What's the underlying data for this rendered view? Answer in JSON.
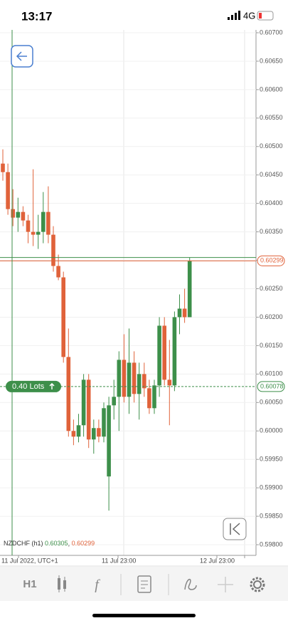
{
  "status_bar": {
    "time": "13:17",
    "network": "4G"
  },
  "chart_data": {
    "type": "candlestick",
    "symbol": "NZDCHF (h1)",
    "ask": 0.60305,
    "bid": 0.60299,
    "order": {
      "label": "0.40 Lots",
      "price": 0.60078
    },
    "up_color": "#3d8f4a",
    "down_color": "#e0623a",
    "ylim": [
      0.59775,
      0.60705
    ],
    "yticks": [
      {
        "value": 0.607,
        "label": "0.60700"
      },
      {
        "value": 0.6065,
        "label": "0.60650"
      },
      {
        "value": 0.606,
        "label": "0.60600"
      },
      {
        "value": 0.6055,
        "label": "0.60550"
      },
      {
        "value": 0.605,
        "label": "0.60500"
      },
      {
        "value": 0.6045,
        "label": "0.60450"
      },
      {
        "value": 0.604,
        "label": "0.60400"
      },
      {
        "value": 0.6035,
        "label": "0.60350"
      },
      {
        "value": 0.603,
        "label": "0.60300"
      },
      {
        "value": 0.6025,
        "label": "0.60250"
      },
      {
        "value": 0.602,
        "label": "0.60200"
      },
      {
        "value": 0.6015,
        "label": "0.60150"
      },
      {
        "value": 0.601,
        "label": "0.60100"
      },
      {
        "value": 0.6005,
        "label": "0.60050"
      },
      {
        "value": 0.6,
        "label": "0.60000"
      },
      {
        "value": 0.5995,
        "label": "0.59950"
      },
      {
        "value": 0.599,
        "label": "0.59900"
      },
      {
        "value": 0.5985,
        "label": "0.59850"
      },
      {
        "value": 0.598,
        "label": "0.59800"
      }
    ],
    "x_labels": [
      "11 Jul 2022, UTC+1",
      "11 Jul 23:00",
      "12 Jul 23:00"
    ],
    "candles": [
      [
        0.6047,
        0.60495,
        0.6044,
        0.60455
      ],
      [
        0.60455,
        0.6047,
        0.6038,
        0.6039
      ],
      [
        0.6039,
        0.60425,
        0.6036,
        0.60375
      ],
      [
        0.60375,
        0.6041,
        0.6035,
        0.60385
      ],
      [
        0.60385,
        0.60395,
        0.6036,
        0.6037
      ],
      [
        0.6037,
        0.6038,
        0.6033,
        0.6035
      ],
      [
        0.6035,
        0.6046,
        0.60325,
        0.60345
      ],
      [
        0.60345,
        0.6038,
        0.6032,
        0.6035
      ],
      [
        0.6035,
        0.6042,
        0.6033,
        0.60385
      ],
      [
        0.60385,
        0.6043,
        0.6033,
        0.60345
      ],
      [
        0.60345,
        0.6036,
        0.6028,
        0.6029
      ],
      [
        0.6029,
        0.6031,
        0.60265,
        0.6027
      ],
      [
        0.6027,
        0.6028,
        0.6012,
        0.6013
      ],
      [
        0.6013,
        0.6018,
        0.5999,
        0.6
      ],
      [
        0.6,
        0.6002,
        0.59975,
        0.5999
      ],
      [
        0.5999,
        0.6003,
        0.5998,
        0.6001
      ],
      [
        0.6001,
        0.601,
        0.5999,
        0.6009
      ],
      [
        0.6009,
        0.601,
        0.5997,
        0.59985
      ],
      [
        0.59985,
        0.6002,
        0.5996,
        0.60005
      ],
      [
        0.60005,
        0.6002,
        0.5998,
        0.5999
      ],
      [
        0.5999,
        0.6005,
        0.5998,
        0.6004
      ],
      [
        0.5992,
        0.6006,
        0.5986,
        0.60045
      ],
      [
        0.60045,
        0.6009,
        0.6002,
        0.6006
      ],
      [
        0.6006,
        0.6014,
        0.6,
        0.60125
      ],
      [
        0.60125,
        0.6017,
        0.6005,
        0.6006
      ],
      [
        0.6006,
        0.6018,
        0.6003,
        0.6012
      ],
      [
        0.6012,
        0.6014,
        0.6005,
        0.60065
      ],
      [
        0.60065,
        0.6012,
        0.6002,
        0.601
      ],
      [
        0.601,
        0.6012,
        0.6006,
        0.60075
      ],
      [
        0.60075,
        0.6009,
        0.6003,
        0.6004
      ],
      [
        0.6004,
        0.6009,
        0.6003,
        0.6008
      ],
      [
        0.6008,
        0.602,
        0.6006,
        0.60185
      ],
      [
        0.60185,
        0.602,
        0.6008,
        0.6009
      ],
      [
        0.6009,
        0.6016,
        0.6001,
        0.6008
      ],
      [
        0.6008,
        0.6021,
        0.6007,
        0.602
      ],
      [
        0.602,
        0.6024,
        0.6017,
        0.60215
      ],
      [
        0.60215,
        0.6025,
        0.6019,
        0.602
      ],
      [
        0.602,
        0.60305,
        0.602,
        0.60299
      ]
    ]
  },
  "toolbar": {
    "timeframe": "H1"
  }
}
